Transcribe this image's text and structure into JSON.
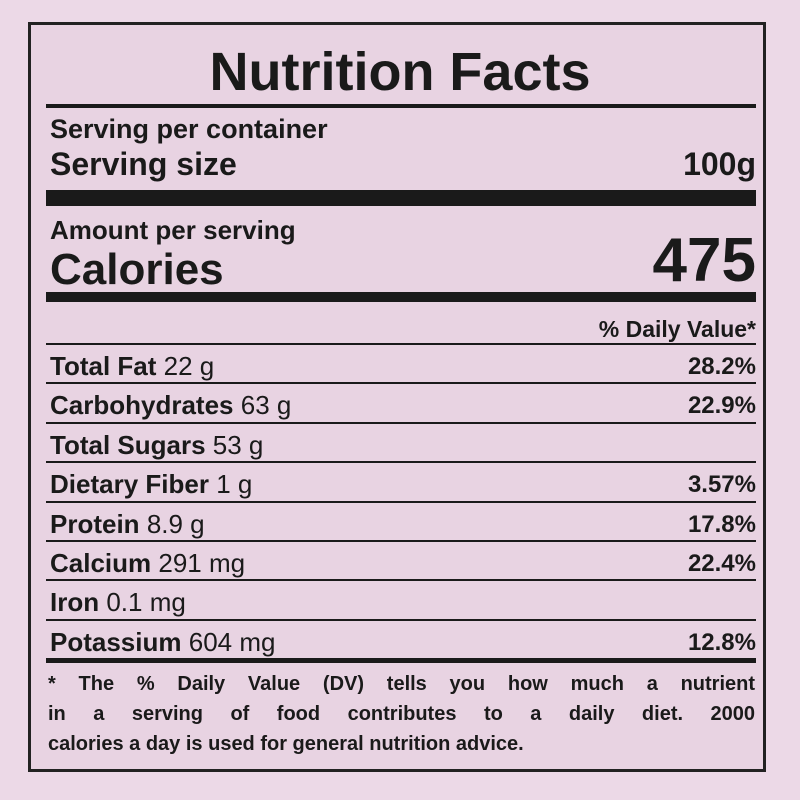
{
  "title": "Nutrition Facts",
  "serving": {
    "per_container_label": "Serving per container",
    "size_label": "Serving size",
    "size": "100g"
  },
  "calories": {
    "amount_label": "Amount per serving",
    "label": "Calories",
    "value": "475"
  },
  "daily_value_header": "% Daily Value*",
  "rows": [
    {
      "name": "Total Fat",
      "amount": "22 g",
      "dv": "28.2%"
    },
    {
      "name": "Carbohydrates",
      "amount": "63 g",
      "dv": "22.9%"
    },
    {
      "name": "Total Sugars",
      "amount": "53 g",
      "dv": null
    },
    {
      "name": "Dietary Fiber",
      "amount": "1 g",
      "dv": "3.57%"
    },
    {
      "name": "Protein",
      "amount": "8.9 g",
      "dv": "17.8%"
    },
    {
      "name": "Calcium",
      "amount": "291 mg",
      "dv": "22.4%"
    },
    {
      "name": "Iron",
      "amount": "0.1 mg",
      "dv": null
    },
    {
      "name": "Potassium",
      "amount": "604 mg",
      "dv": "12.8%"
    }
  ],
  "footnote": [
    "* The % Daily Value (DV) tells you how much a nutrient",
    "in a serving of food contributes to a daily diet. 2000",
    "calories a day is used for general nutrition advice."
  ]
}
